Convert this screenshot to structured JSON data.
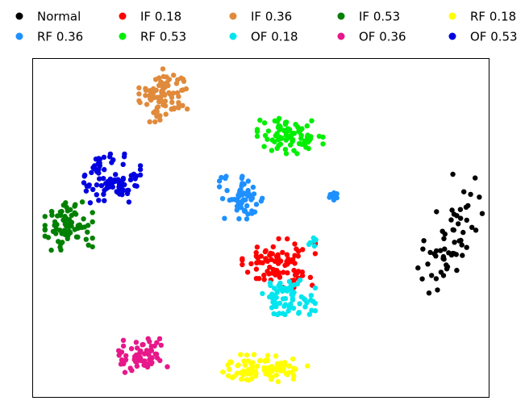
{
  "chart_data": {
    "type": "scatter",
    "title": "",
    "xlabel": "",
    "ylabel": "",
    "grid": false,
    "axis_ticks": false,
    "legend_position": "top",
    "legend_columns": 5,
    "plot_range": {
      "x": [
        0,
        100
      ],
      "y": [
        0,
        100
      ]
    },
    "series": [
      {
        "name": "Normal",
        "color": "#000000",
        "clusters": [
          {
            "x": 91.5,
            "y": 47.5,
            "sx": 2.5,
            "sy": 9.0,
            "rot": -18,
            "n": 60
          }
        ]
      },
      {
        "name": "IF 0.18",
        "color": "#ff0000",
        "clusters": [
          {
            "x": 54.0,
            "y": 39.5,
            "sx": 4.0,
            "sy": 3.6,
            "n": 90
          }
        ]
      },
      {
        "name": "IF 0.36",
        "color": "#e08a3c",
        "clusters": [
          {
            "x": 29.0,
            "y": 89.0,
            "sx": 2.8,
            "sy": 3.9,
            "n": 85
          }
        ]
      },
      {
        "name": "IF 0.53",
        "color": "#008000",
        "clusters": [
          {
            "x": 8.0,
            "y": 50.5,
            "sx": 2.6,
            "sy": 3.6,
            "n": 85
          }
        ]
      },
      {
        "name": "RF 0.18",
        "color": "#ffff00",
        "clusters": [
          {
            "x": 51.0,
            "y": 8.5,
            "sx": 5.0,
            "sy": 2.0,
            "n": 90
          }
        ]
      },
      {
        "name": "RF 0.36",
        "color": "#1e90ff",
        "clusters": [
          {
            "x": 46.0,
            "y": 58.5,
            "sx": 2.5,
            "sy": 3.3,
            "n": 60
          },
          {
            "x": 66.0,
            "y": 60.0,
            "sx": 0.7,
            "sy": 1.0,
            "n": 10
          }
        ]
      },
      {
        "name": "RF 0.53",
        "color": "#00ee00",
        "clusters": [
          {
            "x": 56.5,
            "y": 77.0,
            "sx": 3.6,
            "sy": 2.6,
            "n": 85
          }
        ]
      },
      {
        "name": "OF 0.18",
        "color": "#00e5ee",
        "clusters": [
          {
            "x": 56.0,
            "y": 29.5,
            "sx": 3.0,
            "sy": 2.6,
            "n": 70
          },
          {
            "x": 61.5,
            "y": 46.0,
            "sx": 0.7,
            "sy": 0.8,
            "n": 6
          }
        ]
      },
      {
        "name": "OF 0.36",
        "color": "#e8178a",
        "clusters": [
          {
            "x": 24.0,
            "y": 12.0,
            "sx": 2.8,
            "sy": 2.6,
            "n": 60
          }
        ]
      },
      {
        "name": "OF 0.53",
        "color": "#0000e0",
        "clusters": [
          {
            "x": 17.5,
            "y": 64.5,
            "sx": 3.1,
            "sy": 3.6,
            "n": 85
          }
        ]
      }
    ]
  }
}
